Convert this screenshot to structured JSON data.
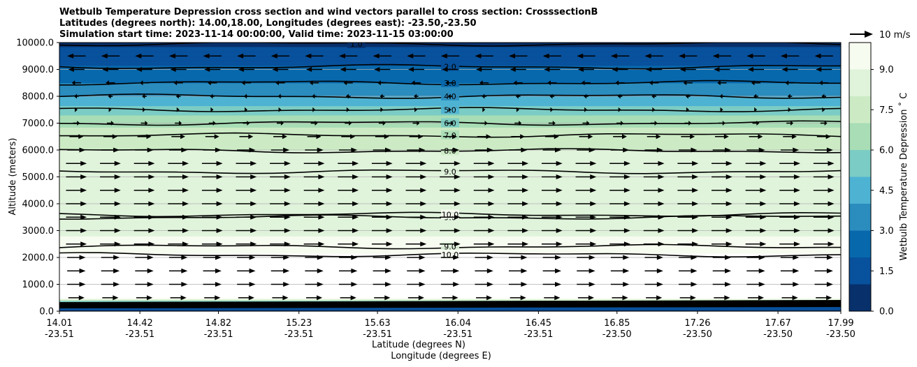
{
  "chart_data": {
    "type": "contour",
    "title_lines": [
      "Wetbulb Temperature Depression cross section and wind vectors parallel to cross section: CrosssectionB",
      "Latitudes (degrees north): 14.00,18.00, Longitudes (degrees east): -23.50,-23.50",
      "Simulation start time: 2023-11-14 00:00:00, Valid time: 2023-11-15 03:00:00"
    ],
    "ylabel": "Altitude (meters)",
    "xlabel_lat": "Latitude (degrees N)",
    "xlabel_lon": "Longitude (degrees E)",
    "ylim": [
      0,
      10000
    ],
    "y_ticks": [
      "0.0",
      "1000.0",
      "2000.0",
      "3000.0",
      "4000.0",
      "5000.0",
      "6000.0",
      "7000.0",
      "8000.0",
      "9000.0",
      "10000.0"
    ],
    "x_range_lat": [
      14.01,
      17.99
    ],
    "x_ticks": [
      {
        "lat": "14.01",
        "lon": "-23.51"
      },
      {
        "lat": "14.42",
        "lon": "-23.51"
      },
      {
        "lat": "14.82",
        "lon": "-23.51"
      },
      {
        "lat": "15.23",
        "lon": "-23.51"
      },
      {
        "lat": "15.63",
        "lon": "-23.51"
      },
      {
        "lat": "16.04",
        "lon": "-23.51"
      },
      {
        "lat": "16.45",
        "lon": "-23.51"
      },
      {
        "lat": "16.85",
        "lon": "-23.50"
      },
      {
        "lat": "17.26",
        "lon": "-23.50"
      },
      {
        "lat": "17.67",
        "lon": "-23.50"
      },
      {
        "lat": "17.99",
        "lon": "-23.50"
      }
    ],
    "grid": "horizontal",
    "colorbar": {
      "label": "Wetbulb Temperature Depression $^\\circ$C",
      "label_text": "Wetbulb Temperature Depression ˚ C",
      "range": [
        0,
        10
      ],
      "ticks": [
        "0.0",
        "1.5",
        "3.0",
        "4.5",
        "6.0",
        "7.5",
        "9.0"
      ],
      "tick_values": [
        0,
        1.5,
        3,
        4.5,
        6,
        7.5,
        9
      ],
      "colors": [
        "#08306b",
        "#08519c",
        "#0868ac",
        "#2b8cbe",
        "#4eb3d3",
        "#7bccc4",
        "#a8ddb5",
        "#ccebc5",
        "#e0f3db",
        "#f7fcf0"
      ]
    },
    "vertical_profile": [
      {
        "alt": 0,
        "value": 0.8
      },
      {
        "alt": 150,
        "value": 1.5
      },
      {
        "alt": 300,
        "value": 3.0
      },
      {
        "alt": 500,
        "value": 10.2
      },
      {
        "alt": 2000,
        "value": 10.2
      },
      {
        "alt": 3000,
        "value": 8.7
      },
      {
        "alt": 4000,
        "value": 8.9
      },
      {
        "alt": 5000,
        "value": 9.0
      },
      {
        "alt": 6000,
        "value": 8.0
      },
      {
        "alt": 7000,
        "value": 6.8
      },
      {
        "alt": 7500,
        "value": 5.5
      },
      {
        "alt": 8000,
        "value": 4.0
      },
      {
        "alt": 8500,
        "value": 3.0
      },
      {
        "alt": 9000,
        "value": 2.2
      },
      {
        "alt": 10000,
        "value": 0.8
      }
    ],
    "contours": [
      {
        "level": "2.0",
        "label": "2.0",
        "alt": 9100
      },
      {
        "level": "3.0",
        "label": "3.0",
        "alt": 8500
      },
      {
        "level": "4.0",
        "label": "4.0",
        "alt": 8000
      },
      {
        "level": "5.0",
        "label": "5.0",
        "alt": 7500
      },
      {
        "level": "6.0",
        "label": "6.0",
        "alt": 7000
      },
      {
        "level": "7.0",
        "label": "7.0",
        "alt": 6550
      },
      {
        "level": "8.0",
        "label": "8.0",
        "alt": 5970
      },
      {
        "level": "9.0",
        "label": "9.0",
        "alt": 5200
      },
      {
        "level": "9.0",
        "label": "9.0",
        "alt": 3500
      },
      {
        "level": "9.0",
        "label": "9.0",
        "alt": 2400
      },
      {
        "level": "10.0",
        "label": "10.0",
        "alt": 2100
      },
      {
        "level": "10.0",
        "label": "10.0",
        "alt": 3600
      },
      {
        "level": "1.0",
        "label": "1.0",
        "alt": 9950
      }
    ],
    "wind_vectors": {
      "reference_label": "10 m/s",
      "reference_speed": 10,
      "levels_alt": [
        9500,
        9000,
        8500,
        8000,
        7500,
        7000,
        6500,
        6000,
        5500,
        5000,
        4500,
        4000,
        3500,
        3000,
        2500,
        2000,
        1500,
        1000,
        500
      ],
      "components_ms": [
        -8,
        -7,
        -4,
        -2,
        1,
        3,
        6,
        8,
        9,
        9,
        9,
        9,
        9,
        9,
        9,
        8,
        8,
        8,
        7
      ]
    }
  }
}
